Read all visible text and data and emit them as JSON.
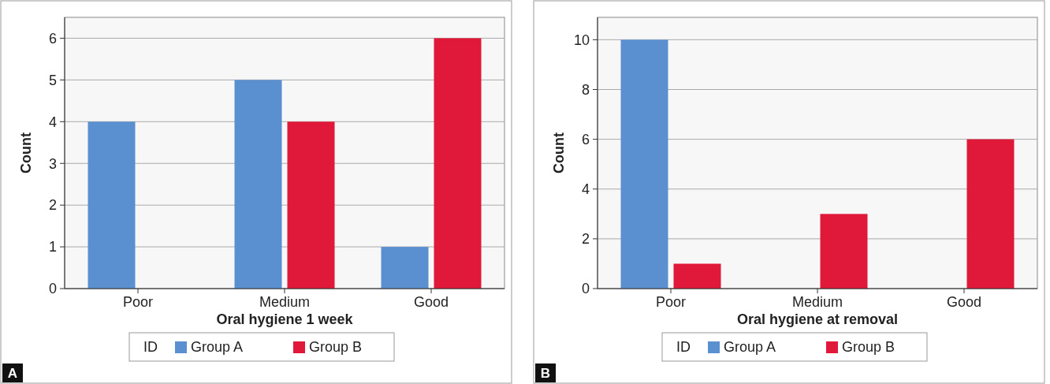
{
  "chart_data": [
    {
      "type": "bar",
      "xlabel": "Oral hygiene 1 week",
      "ylabel": "Count",
      "legend_title": "ID",
      "categories": [
        "Poor",
        "Medium",
        "Good"
      ],
      "series": [
        {
          "name": "Group A",
          "color": "#5a8fd0",
          "values": [
            4,
            5,
            1
          ]
        },
        {
          "name": "Group B",
          "color": "#e0193a",
          "values": [
            0,
            4,
            6
          ]
        }
      ],
      "ylim": [
        0,
        6.5
      ],
      "yticks": [
        0,
        1,
        2,
        3,
        4,
        5,
        6
      ],
      "grid": "y",
      "legend": "bottom",
      "annotations": [
        "A"
      ]
    },
    {
      "type": "bar",
      "xlabel": "Oral hygiene at removal",
      "ylabel": "Count",
      "legend_title": "ID",
      "categories": [
        "Poor",
        "Medium",
        "Good"
      ],
      "series": [
        {
          "name": "Group A",
          "color": "#5a8fd0",
          "values": [
            10,
            0,
            0
          ]
        },
        {
          "name": "Group B",
          "color": "#e0193a",
          "values": [
            1,
            3,
            6
          ]
        }
      ],
      "ylim": [
        0,
        10.9
      ],
      "yticks": [
        0,
        2,
        4,
        6,
        8,
        10
      ],
      "grid": "y",
      "legend": "bottom",
      "annotations": [
        "B"
      ]
    }
  ]
}
